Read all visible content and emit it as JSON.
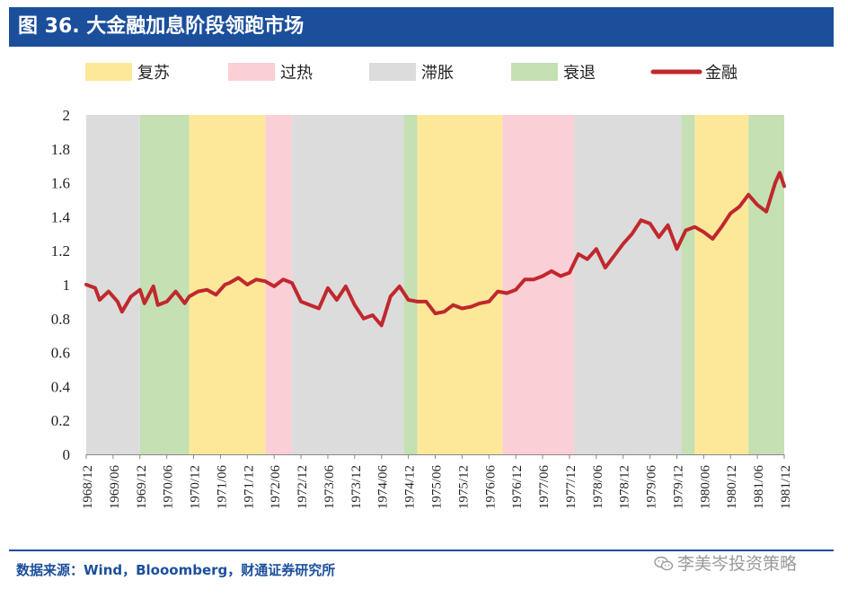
{
  "header": {
    "title": "图 36. 大金融加息阶段领跑市场"
  },
  "footer": {
    "source": "数据来源：Wind，Blooomberg，财通证券研究所",
    "watermark": "李美岑投资策略"
  },
  "icons": {
    "watermark": "wechat-icon"
  },
  "colors": {
    "复苏": "#fde89a",
    "过热": "#fbcfd6",
    "滞胀": "#dcdcdc",
    "衰退": "#c5e0b3",
    "line": "#c0282d",
    "header_bg": "#1b4f9c"
  },
  "chart_data": {
    "type": "line",
    "title": "",
    "xlabel": "",
    "ylabel": "",
    "ylim": [
      0,
      2
    ],
    "yticks": [
      "0",
      "0.2",
      "0.4",
      "0.6",
      "0.8",
      "1",
      "1.2",
      "1.4",
      "1.6",
      "1.8",
      "2"
    ],
    "x_range": [
      "1968-12",
      "1981-12"
    ],
    "xticks": [
      "1968/12",
      "1969/06",
      "1969/12",
      "1970/06",
      "1970/12",
      "1971/06",
      "1971/12",
      "1972/06",
      "1972/12",
      "1973/06",
      "1973/12",
      "1974/06",
      "1974/12",
      "1975/06",
      "1975/12",
      "1976/06",
      "1976/12",
      "1977/06",
      "1977/12",
      "1978/06",
      "1978/12",
      "1979/06",
      "1979/12",
      "1980/06",
      "1980/12",
      "1981/06",
      "1981/12"
    ],
    "grid": false,
    "legend_position": "top",
    "legend": [
      {
        "label": "复苏",
        "kind": "band",
        "color": "#fde89a"
      },
      {
        "label": "过热",
        "kind": "band",
        "color": "#fbcfd6"
      },
      {
        "label": "滞胀",
        "kind": "band",
        "color": "#dcdcdc"
      },
      {
        "label": "衰退",
        "kind": "band",
        "color": "#c5e0b3"
      },
      {
        "label": "金融",
        "kind": "line",
        "color": "#c0282d"
      }
    ],
    "phases": [
      {
        "phase": "滞胀",
        "start": "1968-12",
        "end": "1969-12"
      },
      {
        "phase": "衰退",
        "start": "1969-12",
        "end": "1970-11"
      },
      {
        "phase": "复苏",
        "start": "1970-11",
        "end": "1972-04"
      },
      {
        "phase": "过热",
        "start": "1972-04",
        "end": "1972-10"
      },
      {
        "phase": "滞胀",
        "start": "1972-10",
        "end": "1974-11"
      },
      {
        "phase": "衰退",
        "start": "1974-11",
        "end": "1975-02"
      },
      {
        "phase": "复苏",
        "start": "1975-02",
        "end": "1976-09"
      },
      {
        "phase": "过热",
        "start": "1976-09",
        "end": "1978-01"
      },
      {
        "phase": "滞胀",
        "start": "1978-01",
        "end": "1980-01"
      },
      {
        "phase": "衰退",
        "start": "1980-01",
        "end": "1980-04"
      },
      {
        "phase": "复苏",
        "start": "1980-04",
        "end": "1981-04"
      },
      {
        "phase": "衰退",
        "start": "1981-04",
        "end": "1981-12"
      }
    ],
    "series": [
      {
        "name": "金融",
        "color": "#c0282d",
        "x": [
          "1968-12",
          "1969-02",
          "1969-03",
          "1969-05",
          "1969-07",
          "1969-08",
          "1969-10",
          "1969-12",
          "1970-01",
          "1970-03",
          "1970-04",
          "1970-06",
          "1970-08",
          "1970-10",
          "1970-11",
          "1971-01",
          "1971-03",
          "1971-05",
          "1971-07",
          "1971-08",
          "1971-10",
          "1971-12",
          "1972-02",
          "1972-04",
          "1972-06",
          "1972-08",
          "1972-10",
          "1972-12",
          "1973-02",
          "1973-04",
          "1973-06",
          "1973-08",
          "1973-10",
          "1973-12",
          "1974-02",
          "1974-04",
          "1974-06",
          "1974-08",
          "1974-10",
          "1974-12",
          "1975-02",
          "1975-04",
          "1975-06",
          "1975-08",
          "1975-10",
          "1975-12",
          "1976-02",
          "1976-04",
          "1976-06",
          "1976-08",
          "1976-10",
          "1976-12",
          "1977-02",
          "1977-04",
          "1977-06",
          "1977-08",
          "1977-10",
          "1977-12",
          "1978-02",
          "1978-04",
          "1978-06",
          "1978-08",
          "1978-10",
          "1978-12",
          "1979-02",
          "1979-04",
          "1979-06",
          "1979-08",
          "1979-10",
          "1979-12",
          "1980-02",
          "1980-04",
          "1980-06",
          "1980-08",
          "1980-10",
          "1980-12",
          "1981-02",
          "1981-04",
          "1981-06",
          "1981-08",
          "1981-10",
          "1981-11",
          "1981-12"
        ],
        "values": [
          1.0,
          0.98,
          0.91,
          0.96,
          0.9,
          0.84,
          0.93,
          0.97,
          0.89,
          0.99,
          0.88,
          0.9,
          0.96,
          0.89,
          0.93,
          0.96,
          0.97,
          0.94,
          1.0,
          1.01,
          1.04,
          1.0,
          1.03,
          1.02,
          0.99,
          1.03,
          1.01,
          0.9,
          0.88,
          0.86,
          0.98,
          0.91,
          0.99,
          0.88,
          0.8,
          0.82,
          0.76,
          0.93,
          0.99,
          0.91,
          0.9,
          0.9,
          0.83,
          0.84,
          0.88,
          0.86,
          0.87,
          0.89,
          0.9,
          0.96,
          0.95,
          0.97,
          1.03,
          1.03,
          1.05,
          1.08,
          1.05,
          1.07,
          1.18,
          1.15,
          1.21,
          1.1,
          1.17,
          1.24,
          1.3,
          1.38,
          1.36,
          1.28,
          1.35,
          1.21,
          1.32,
          1.34,
          1.31,
          1.27,
          1.34,
          1.42,
          1.46,
          1.53,
          1.47,
          1.43,
          1.6,
          1.66,
          1.58
        ]
      }
    ]
  }
}
